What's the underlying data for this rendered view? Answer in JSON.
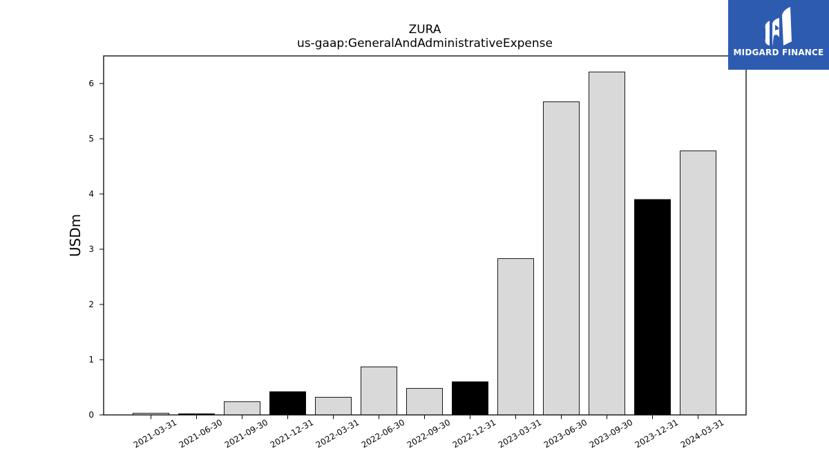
{
  "chart_data": {
    "type": "bar",
    "title": "ZURA",
    "subtitle": "us-gaap:GeneralAndAdministrativeExpense",
    "xlabel": "",
    "ylabel": "USDm",
    "ylim": [
      0,
      6.5
    ],
    "yticks": [
      0,
      1,
      2,
      3,
      4,
      5,
      6
    ],
    "categories": [
      "2021-03-31",
      "2021-06-30",
      "2021-09-30",
      "2021-12-31",
      "2022-03-31",
      "2022-06-30",
      "2022-09-30",
      "2022-12-31",
      "2023-03-31",
      "2023-06-30",
      "2023-09-30",
      "2023-12-31",
      "2024-03-31"
    ],
    "values": [
      0.03,
      0.02,
      0.24,
      0.42,
      0.32,
      0.87,
      0.48,
      0.6,
      2.83,
      5.67,
      6.21,
      3.9,
      4.78
    ],
    "bar_colors": [
      "#d9d9d9",
      "#000000",
      "#d9d9d9",
      "#000000",
      "#d9d9d9",
      "#d9d9d9",
      "#d9d9d9",
      "#000000",
      "#d9d9d9",
      "#d9d9d9",
      "#d9d9d9",
      "#000000",
      "#d9d9d9"
    ],
    "grid": false
  },
  "logo": {
    "text": "MIDGARD FINANCE",
    "color": "#2d5bb0"
  }
}
